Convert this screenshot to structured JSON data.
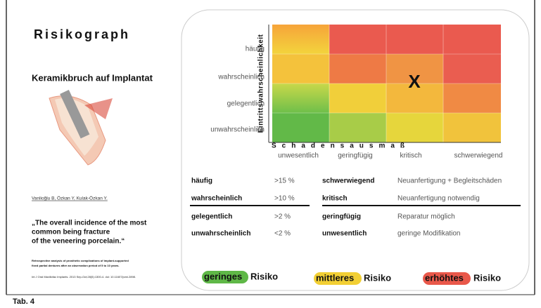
{
  "left": {
    "title": "Risikograph",
    "subtitle": "Keramikbruch auf Implantat",
    "authors": "Vanlioğlu B, Özkan Y, Kulak-Özkan Y.",
    "quote": [
      "„The overall incidence of the most",
      "common being fracture",
      "of the veneering porcelain.“"
    ],
    "reference": [
      "Retrospective analysis of prosthetic complications of implant-supported",
      "fixed partial dentures after an observation period of 5 to 10 years.",
      "Int J Oral Maxillofac Implants. 2013 Sep-Oct;28(5):1300-4. doi: 10.11607/jomi.2898."
    ]
  },
  "matrix": {
    "y_title": "Eintrittswahrscheinlichkeit",
    "x_title": "Schadensausmaß",
    "rows": [
      "häufig",
      "wahrscheinlich",
      "gelegentlich",
      "unwahrscheinlich"
    ],
    "columns": [
      "unwesentlich",
      "geringfügig",
      "kritisch",
      "schwerwiegend"
    ],
    "marker": "X"
  },
  "table": {
    "rows": [
      [
        "häufig",
        ">15 %",
        "schwerwiegend",
        "Neuanfertigung + Begleitschäden"
      ],
      [
        "wahrscheinlich",
        ">10 %",
        "kritisch",
        "Neuanfertigung notwendig"
      ],
      [
        "gelegentlich",
        ">2 %",
        "geringfügig",
        "Reparatur möglich"
      ],
      [
        "unwahrscheinlich",
        "<2 %",
        "unwesentlich",
        "geringe Modifikation"
      ]
    ]
  },
  "risk_legend": [
    {
      "word": "geringes",
      "rest": "Risiko"
    },
    {
      "word": "mittleres",
      "rest": "Risiko"
    },
    {
      "word": "erhöhtes",
      "rest": "Risiko"
    }
  ],
  "caption": "Tab. 4"
}
